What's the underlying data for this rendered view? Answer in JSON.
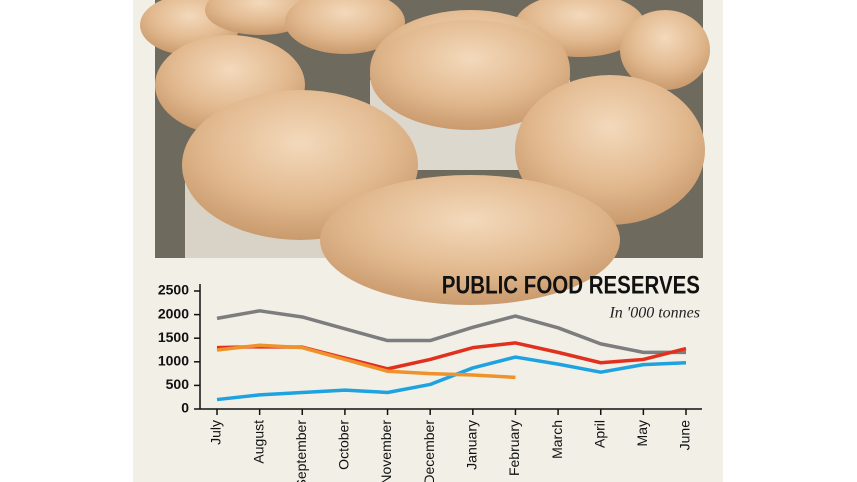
{
  "chart_data": {
    "type": "line",
    "title": "PUBLIC FOOD RESERVES",
    "subtitle": "In '000 tonnes",
    "categories": [
      "July",
      "August",
      "September",
      "October",
      "November",
      "December",
      "January",
      "February",
      "March",
      "April",
      "May",
      "June"
    ],
    "series": [
      {
        "color": "#7d7d7d",
        "values": [
          1920,
          2080,
          1950,
          1700,
          1450,
          1450,
          1730,
          1970,
          1720,
          1380,
          1200,
          1200
        ]
      },
      {
        "color": "#e2301f",
        "values": [
          1300,
          1320,
          1310,
          1080,
          850,
          1050,
          1300,
          1400,
          1200,
          980,
          1050,
          1280
        ]
      },
      {
        "color": "#1fa3e0",
        "values": [
          200,
          300,
          350,
          400,
          350,
          520,
          870,
          1100,
          950,
          780,
          940,
          980
        ]
      },
      {
        "color": "#f0922b",
        "values": [
          1250,
          1350,
          1300,
          1050,
          800,
          750,
          720,
          670,
          null,
          null,
          null,
          null
        ]
      }
    ],
    "ylim": [
      0,
      2500
    ],
    "yticks": [
      0,
      500,
      1000,
      1500,
      2000,
      2500
    ]
  }
}
